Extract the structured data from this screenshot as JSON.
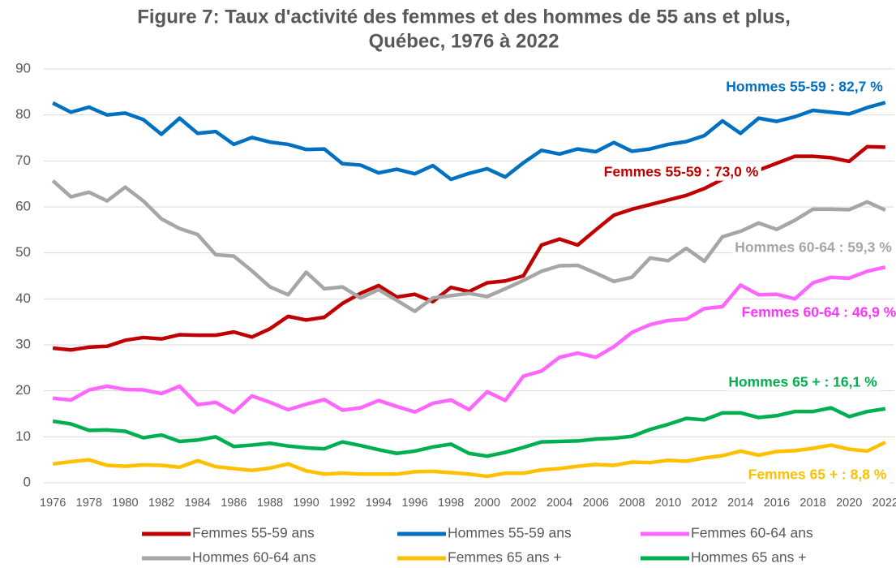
{
  "chart_data": {
    "type": "line",
    "title": "Figure 7: Taux d'activité des femmes et des hommes de 55 ans et plus,",
    "subtitle": "Québec, 1976 à 2022",
    "x": [
      1976,
      1977,
      1978,
      1979,
      1980,
      1981,
      1982,
      1983,
      1984,
      1985,
      1986,
      1987,
      1988,
      1989,
      1990,
      1991,
      1992,
      1993,
      1994,
      1995,
      1996,
      1997,
      1998,
      1999,
      2000,
      2001,
      2002,
      2003,
      2004,
      2005,
      2006,
      2007,
      2008,
      2009,
      2010,
      2011,
      2012,
      2013,
      2014,
      2015,
      2016,
      2017,
      2018,
      2019,
      2020,
      2021,
      2022
    ],
    "xlim": [
      1975.5,
      2022.5
    ],
    "xticks": [
      1976,
      1978,
      1980,
      1982,
      1984,
      1986,
      1988,
      1990,
      1992,
      1994,
      1996,
      1998,
      2000,
      2002,
      2004,
      2006,
      2008,
      2010,
      2012,
      2014,
      2016,
      2018,
      2020,
      2022
    ],
    "ylim": [
      0,
      90
    ],
    "yticks": [
      0,
      10,
      20,
      30,
      40,
      50,
      60,
      70,
      80,
      90
    ],
    "grid": true,
    "legend": "bottom",
    "series": [
      {
        "name": "Femmes 55-59 ans",
        "color": "#c00000",
        "values": [
          29.3,
          28.9,
          29.5,
          29.7,
          31.0,
          31.6,
          31.3,
          32.2,
          32.1,
          32.1,
          32.8,
          31.7,
          33.5,
          36.2,
          35.4,
          36.0,
          39.0,
          41.2,
          42.9,
          40.4,
          41.0,
          39.4,
          42.5,
          41.6,
          43.5,
          43.9,
          45.0,
          51.7,
          53.0,
          51.7,
          55.0,
          58.2,
          59.5,
          60.5,
          61.5,
          62.5,
          64,
          66,
          67,
          68,
          69.5,
          71.0,
          71.0,
          70.7,
          69.9,
          73.1,
          73.0
        ]
      },
      {
        "name": "Hommes 55-59 ans",
        "color": "#0070c0",
        "values": [
          82.6,
          80.6,
          81.7,
          80.0,
          80.4,
          79.0,
          75.8,
          79.3,
          76.0,
          76.4,
          73.6,
          75.1,
          74.1,
          73.6,
          72.5,
          72.6,
          69.4,
          69.1,
          67.4,
          68.2,
          67.2,
          69.0,
          66.0,
          67.3,
          68.3,
          66.5,
          69.6,
          72.3,
          71.5,
          72.6,
          72.0,
          74.0,
          72.1,
          72.6,
          73.6,
          74.2,
          75.5,
          78.7,
          76.0,
          79.3,
          78.6,
          79.6,
          81.0,
          80.6,
          80.2,
          81.6,
          82.7
        ]
      },
      {
        "name": "Femmes 60-64 ans",
        "color": "#ff66ff",
        "values": [
          18.4,
          18.0,
          20.2,
          21.0,
          20.3,
          20.2,
          19.4,
          21.0,
          17.0,
          17.5,
          15.3,
          18.9,
          17.5,
          15.9,
          17.1,
          18.1,
          15.8,
          16.3,
          17.9,
          16.6,
          15.4,
          17.3,
          18.0,
          15.9,
          19.8,
          17.9,
          23.2,
          24.3,
          27.3,
          28.2,
          27.3,
          29.6,
          32.7,
          34.4,
          35.3,
          35.6,
          37.9,
          38.3,
          43.0,
          40.9,
          41.0,
          40.0,
          43.5,
          44.7,
          44.5,
          46.0,
          46.9
        ]
      },
      {
        "name": "Hommes 60-64 ans",
        "color": "#a6a6a6",
        "values": [
          65.7,
          62.2,
          63.2,
          61.3,
          64.3,
          61.3,
          57.4,
          55.3,
          54.0,
          49.6,
          49.3,
          46.1,
          42.6,
          40.9,
          45.8,
          42.2,
          42.6,
          40.2,
          42.0,
          39.7,
          37.3,
          40.2,
          40.7,
          41.2,
          40.5,
          42.2,
          44.0,
          46.0,
          47.2,
          47.3,
          45.6,
          43.8,
          44.7,
          48.9,
          48.3,
          51.0,
          48.2,
          53.5,
          54.7,
          56.5,
          55.1,
          57.1,
          59.5,
          59.5,
          59.4,
          61.1,
          59.3
        ]
      },
      {
        "name": "Femmes 65 ans +",
        "color": "#ffc000",
        "values": [
          4.1,
          4.6,
          5.0,
          3.8,
          3.6,
          3.9,
          3.8,
          3.4,
          4.8,
          3.5,
          3.1,
          2.7,
          3.2,
          4.1,
          2.6,
          1.9,
          2.1,
          1.9,
          1.9,
          1.9,
          2.4,
          2.5,
          2.2,
          1.9,
          1.4,
          2.1,
          2.1,
          2.8,
          3.1,
          3.6,
          4.0,
          3.8,
          4.5,
          4.4,
          4.9,
          4.7,
          5.4,
          5.9,
          6.9,
          6.0,
          6.8,
          7.0,
          7.5,
          8.2,
          7.3,
          6.9,
          8.8
        ]
      },
      {
        "name": "Hommes 65 ans +",
        "color": "#00b050",
        "values": [
          13.4,
          12.8,
          11.4,
          11.5,
          11.2,
          9.8,
          10.4,
          9.0,
          9.3,
          10.0,
          7.9,
          8.2,
          8.6,
          8.0,
          7.6,
          7.4,
          8.9,
          8.1,
          7.2,
          6.4,
          6.9,
          7.8,
          8.4,
          6.4,
          5.8,
          6.6,
          7.7,
          8.9,
          9.0,
          9.1,
          9.5,
          9.7,
          10.1,
          11.6,
          12.7,
          14.0,
          13.7,
          15.2,
          15.2,
          14.2,
          14.6,
          15.5,
          15.5,
          16.3,
          14.4,
          15.5,
          16.1
        ]
      }
    ],
    "annotations": [
      {
        "text": "Hommes 55-59 : 82,7 %",
        "color": "#0070c0"
      },
      {
        "text": "Femmes 55-59 : 73,0 %",
        "color": "#c00000"
      },
      {
        "text": "Hommes 60-64 : 59,3 %",
        "color": "#a6a6a6"
      },
      {
        "text": "Femmes 60-64 : 46,9 %",
        "color": "#ff33ff"
      },
      {
        "text": "Hommes 65 + : 16,1 %",
        "color": "#00b050"
      },
      {
        "text": "Femmes 65 + : 8,8 %",
        "color": "#ffc000"
      }
    ]
  }
}
